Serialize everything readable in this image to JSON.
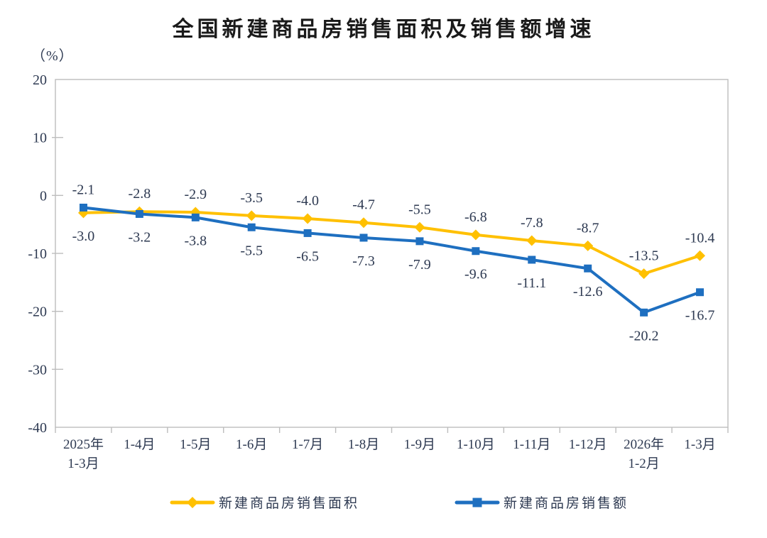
{
  "header": {
    "title": "全国新建商品房销售面积及销售额增速",
    "unit_label": "（%）"
  },
  "chart_data": {
    "type": "line",
    "title": "全国新建商品房销售面积及销售额增速",
    "ylabel": "（%）",
    "xlabel": "",
    "categories": [
      "2025年\n1-3月",
      "1-4月",
      "1-5月",
      "1-6月",
      "1-7月",
      "1-8月",
      "1-9月",
      "1-10月",
      "1-11月",
      "1-12月",
      "2026年\n1-2月",
      "1-3月"
    ],
    "series": [
      {
        "name": "新建商品房销售面积",
        "color": "#FFC000",
        "marker": "diamond",
        "values": [
          -3.0,
          -2.8,
          -2.9,
          -3.5,
          -4.0,
          -4.7,
          -5.5,
          -6.8,
          -7.8,
          -8.7,
          -13.5,
          -10.4
        ],
        "label_sides": [
          "below",
          "above",
          "above",
          "above",
          "above",
          "above",
          "above",
          "above",
          "above",
          "above",
          "above",
          "above"
        ]
      },
      {
        "name": "新建商品房销售额",
        "color": "#1E6FC0",
        "marker": "square",
        "values": [
          -2.1,
          -3.2,
          -3.8,
          -5.5,
          -6.5,
          -7.3,
          -7.9,
          -9.6,
          -11.1,
          -12.6,
          -20.2,
          -16.7
        ],
        "label_sides": [
          "above",
          "below",
          "below",
          "below",
          "below",
          "below",
          "below",
          "below",
          "below",
          "below",
          "below",
          "below"
        ]
      }
    ],
    "ylim": [
      -40,
      20
    ],
    "ytick_step": 10,
    "yticks": [
      20,
      10,
      0,
      -10,
      -20,
      -30,
      -40
    ],
    "grid": false,
    "legend_position": "bottom",
    "axis_color": "#bdbdbd",
    "text_color": "#2e3a52"
  }
}
